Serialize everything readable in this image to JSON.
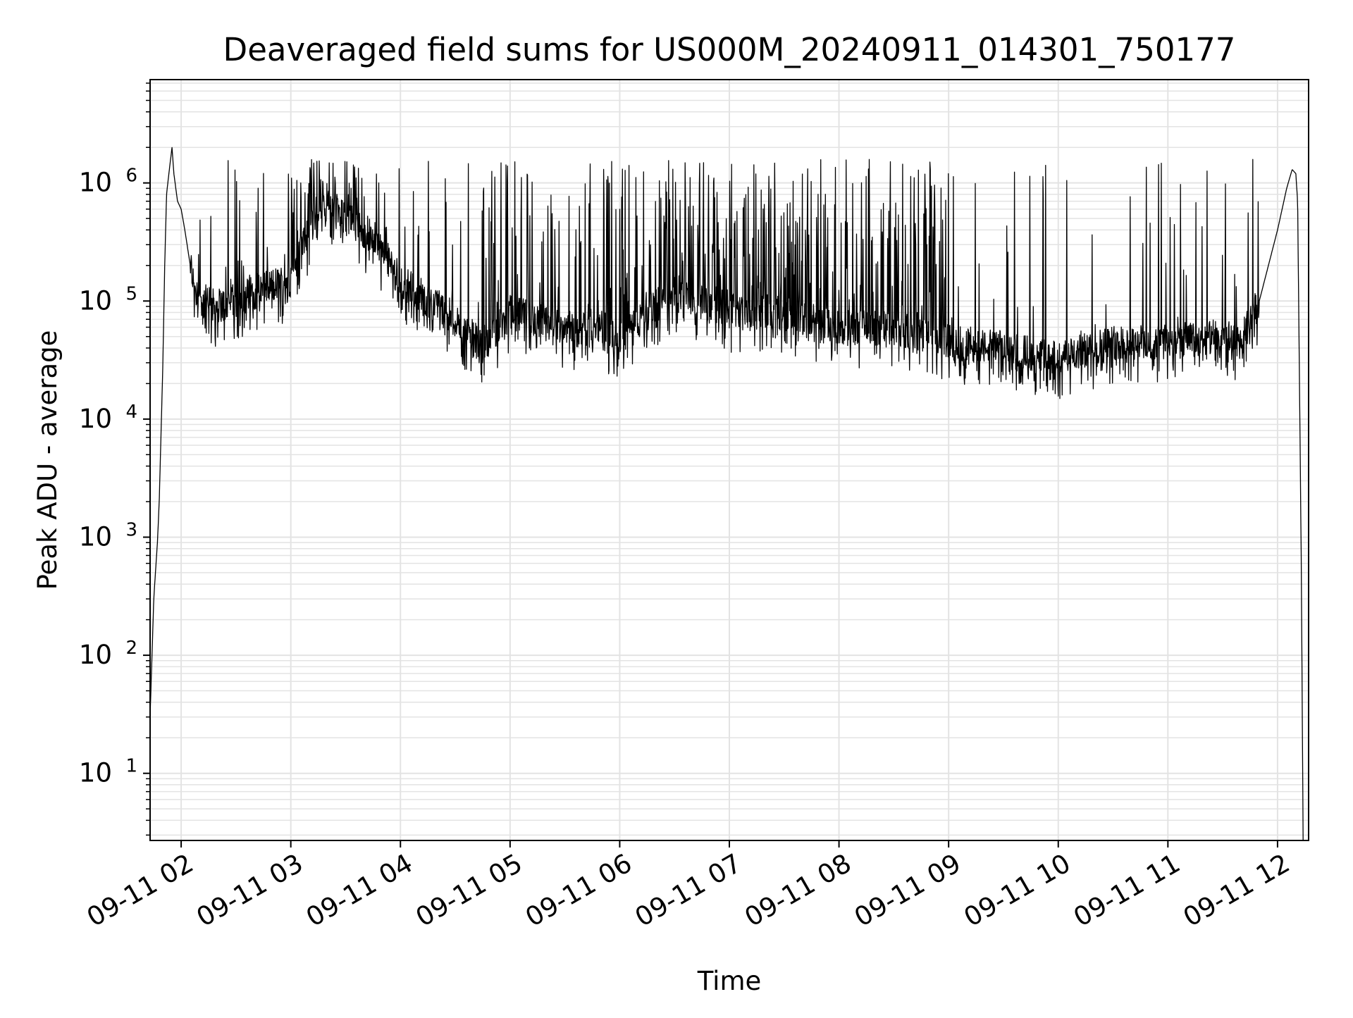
{
  "chart_data": {
    "type": "line",
    "title": "Deaveraged field sums for US000M_20240911_014301_750177",
    "xlabel": "Time",
    "ylabel": "Peak ADU - average",
    "y_scale": "log",
    "ylim": [
      2.7,
      7500000
    ],
    "xlim": [
      "09-11 01:43",
      "09-11 12:17"
    ],
    "x_ticks": [
      "09-11 02",
      "09-11 03",
      "09-11 04",
      "09-11 05",
      "09-11 06",
      "09-11 07",
      "09-11 08",
      "09-11 09",
      "09-11 10",
      "09-11 11",
      "09-11 12"
    ],
    "y_ticks": [
      {
        "value": 10,
        "base": "10",
        "exp": "1"
      },
      {
        "value": 100,
        "base": "10",
        "exp": "2"
      },
      {
        "value": 1000,
        "base": "10",
        "exp": "3"
      },
      {
        "value": 10000,
        "base": "10",
        "exp": "4"
      },
      {
        "value": 100000,
        "base": "10",
        "exp": "5"
      },
      {
        "value": 1000000,
        "base": "10",
        "exp": "6"
      }
    ],
    "grid": true,
    "line_color": "#000000",
    "grid_color": "#e3e3e3",
    "series": [
      {
        "x": [
          "09-11 01:43",
          "09-11 01:45",
          "09-11 01:47",
          "09-11 01:48",
          "09-11 01:50",
          "09-11 01:51",
          "09-11 01:52",
          "09-11 01:54",
          "09-11 01:55",
          "09-11 01:56",
          "09-11 01:58",
          "09-11 02:00",
          "09-11 02:02",
          "09-11 02:05",
          "09-11 02:08",
          "09-11 02:12",
          "09-11 02:18",
          "09-11 02:30",
          "09-11 02:45",
          "09-11 03:00",
          "09-11 03:10",
          "09-11 03:20",
          "09-11 03:30",
          "09-11 03:45",
          "09-11 04:00",
          "09-11 04:30",
          "09-11 04:45",
          "09-11 05:00",
          "09-11 05:30",
          "09-11 06:00",
          "09-11 06:30",
          "09-11 07:00",
          "09-11 07:30",
          "09-11 08:00",
          "09-11 08:30",
          "09-11 09:00",
          "09-11 09:30",
          "09-11 10:00",
          "09-11 10:15",
          "09-11 10:30",
          "09-11 11:00",
          "09-11 11:30",
          "09-11 11:40",
          "09-11 11:50",
          "09-11 12:00",
          "09-11 12:05",
          "09-11 12:08",
          "09-11 12:10",
          "09-11 12:11",
          "09-11 12:13",
          "09-11 12:14"
        ],
        "y": [
          30,
          300,
          900,
          2000,
          30000,
          200000,
          800000,
          1500000,
          2000000,
          1200000,
          700000,
          600000,
          400000,
          200000,
          130000,
          100000,
          90000,
          100000,
          130000,
          150000,
          400000,
          600000,
          500000,
          350000,
          150000,
          70000,
          40000,
          80000,
          60000,
          50000,
          120000,
          80000,
          80000,
          60000,
          60000,
          45000,
          40000,
          33000,
          38000,
          45000,
          45000,
          50000,
          45000,
          100000,
          400000,
          900000,
          1300000,
          1200000,
          700000,
          600,
          2.7
        ]
      }
    ]
  }
}
